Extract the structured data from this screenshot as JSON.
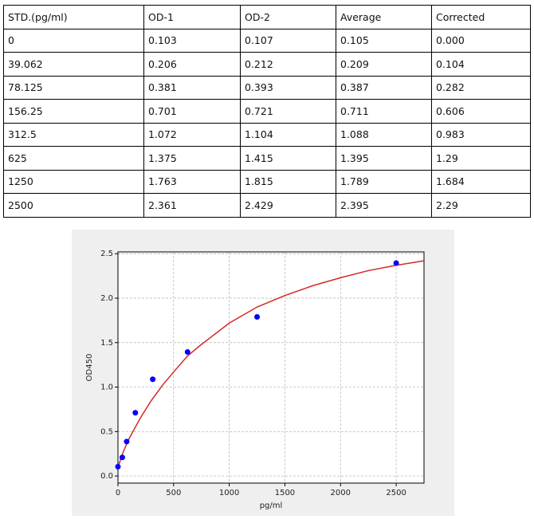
{
  "table": {
    "header": [
      "STD.(pg/ml)",
      "OD-1",
      "OD-2",
      "Average",
      "Corrected"
    ],
    "rows": [
      [
        "0",
        "0.103",
        "0.107",
        "0.105",
        "0.000"
      ],
      [
        "39.062",
        "0.206",
        "0.212",
        "0.209",
        "0.104"
      ],
      [
        "78.125",
        "0.381",
        "0.393",
        "0.387",
        "0.282"
      ],
      [
        "156.25",
        "0.701",
        "0.721",
        "0.711",
        "0.606"
      ],
      [
        "312.5",
        "1.072",
        "1.104",
        "1.088",
        "0.983"
      ],
      [
        "625",
        "1.375",
        "1.415",
        "1.395",
        "1.29"
      ],
      [
        "1250",
        "1.763",
        "1.815",
        "1.789",
        "1.684"
      ],
      [
        "2500",
        "2.361",
        "2.429",
        "2.395",
        "2.29"
      ]
    ]
  },
  "chart_data": {
    "type": "scatter",
    "xlabel": "pg/ml",
    "ylabel": "OD450",
    "xlim": [
      0,
      2750
    ],
    "ylim": [
      -0.08,
      2.52
    ],
    "xticks": [
      0,
      500,
      1000,
      1500,
      2000,
      2500
    ],
    "yticks": [
      {
        "value": 0,
        "label": "0.0"
      },
      0.5,
      {
        "value": 1,
        "label": "1.0"
      },
      1.5,
      {
        "value": 2,
        "label": "2.0"
      },
      2.5
    ],
    "grid": true,
    "series": [
      {
        "mode": "markers",
        "color": "#0000ff",
        "x": [
          0,
          39.062,
          78.125,
          156.25,
          312.5,
          625,
          1250,
          2500
        ],
        "values": [
          0.105,
          0.209,
          0.387,
          0.711,
          1.088,
          1.395,
          1.789,
          2.395
        ]
      },
      {
        "mode": "line",
        "color": "#d62728",
        "x": [
          0,
          50,
          100,
          200,
          300,
          400,
          500,
          625,
          750,
          1000,
          1250,
          1500,
          1750,
          2000,
          2250,
          2500,
          2750
        ],
        "values": [
          0.1,
          0.28,
          0.42,
          0.65,
          0.85,
          1.02,
          1.17,
          1.35,
          1.48,
          1.72,
          1.9,
          2.03,
          2.14,
          2.23,
          2.31,
          2.37,
          2.42
        ]
      }
    ]
  }
}
